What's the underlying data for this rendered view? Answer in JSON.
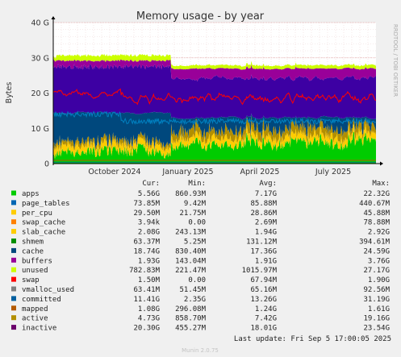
{
  "chart_data": {
    "type": "area",
    "title": "Memory usage - by year",
    "ylabel": "Bytes",
    "side_label": "RRDTOOL / TOBI OETIKER",
    "ylim": [
      0,
      40
    ],
    "y_unit": "G",
    "y_ticks": [
      "0",
      "10 G",
      "20 G",
      "30 G",
      "40 G"
    ],
    "x_tick_labels": [
      "October 2024",
      "January 2025",
      "April 2025",
      "July 2025"
    ],
    "columns": [
      "Cur:",
      "Min:",
      "Avg:",
      "Max:"
    ],
    "series": [
      {
        "name": "apps",
        "color": "#00cc00",
        "cur": "5.56G",
        "min": "860.93M",
        "avg": "7.17G",
        "max": "22.32G"
      },
      {
        "name": "page_tables",
        "color": "#0066b3",
        "cur": "73.85M",
        "min": "9.42M",
        "avg": "85.88M",
        "max": "440.67M"
      },
      {
        "name": "per_cpu",
        "color": "#ffcc00",
        "cur": "29.50M",
        "min": "21.75M",
        "avg": "28.86M",
        "max": "45.88M"
      },
      {
        "name": "swap_cache",
        "color": "#ff8000",
        "cur": "3.94k",
        "min": "0.00",
        "avg": "2.69M",
        "max": "78.88M"
      },
      {
        "name": "slab_cache",
        "color": "#ffcc00",
        "cur": "2.08G",
        "min": "243.13M",
        "avg": "1.94G",
        "max": "2.92G"
      },
      {
        "name": "shmem",
        "color": "#008f00",
        "cur": "63.37M",
        "min": "5.25M",
        "avg": "131.12M",
        "max": "394.61M"
      },
      {
        "name": "cache",
        "color": "#00487d",
        "cur": "18.74G",
        "min": "830.40M",
        "avg": "17.36G",
        "max": "24.59G"
      },
      {
        "name": "buffers",
        "color": "#990099",
        "cur": "1.93G",
        "min": "143.04M",
        "avg": "1.91G",
        "max": "3.76G"
      },
      {
        "name": "unused",
        "color": "#ccff00",
        "cur": "782.83M",
        "min": "221.47M",
        "avg": "1015.97M",
        "max": "27.17G"
      },
      {
        "name": "swap",
        "color": "#ff0000",
        "cur": "1.50M",
        "min": "0.00",
        "avg": "67.94M",
        "max": "1.90G"
      },
      {
        "name": "vmalloc_used",
        "color": "#808080",
        "cur": "63.41M",
        "min": "51.45M",
        "avg": "65.16M",
        "max": "92.56M"
      },
      {
        "name": "committed",
        "color": "#005f9f",
        "cur": "11.41G",
        "min": "2.35G",
        "avg": "13.26G",
        "max": "31.19G"
      },
      {
        "name": "mapped",
        "color": "#b35a00",
        "cur": "1.08G",
        "min": "296.08M",
        "avg": "1.24G",
        "max": "1.61G"
      },
      {
        "name": "active",
        "color": "#b38f00",
        "cur": "4.73G",
        "min": "858.70M",
        "avg": "7.42G",
        "max": "19.16G"
      },
      {
        "name": "inactive",
        "color": "#6b006b",
        "cur": "20.30G",
        "min": "455.27M",
        "avg": "18.01G",
        "max": "23.54G"
      }
    ],
    "last_update": "Last update: Fri Sep  5 17:00:05 2025",
    "footer": "Munin 2.0.75"
  }
}
